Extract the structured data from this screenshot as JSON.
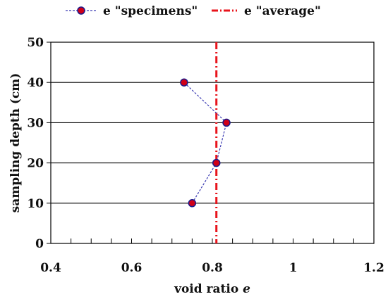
{
  "chart_data": {
    "type": "scatter",
    "xlabel": "void ratio",
    "xlabel_symbol": "e",
    "ylabel": "sampling depth (cm)",
    "xlim": [
      0.4,
      1.2
    ],
    "ylim": [
      0,
      50
    ],
    "x_ticks": [
      "0.4",
      "0.6",
      "0.8",
      "1",
      "1.2"
    ],
    "y_ticks": [
      "0",
      "10",
      "20",
      "30",
      "40",
      "50"
    ],
    "x_minor_step": 0.05,
    "grid": "horizontal",
    "legend_position": "top",
    "series": [
      {
        "name": "e \"specimens\"",
        "style": "dashed line with circle markers",
        "line_color": "#3b3bb3",
        "marker_fill": "#d00018",
        "marker_edge": "#1a1a8c",
        "points": [
          {
            "x": 0.75,
            "y": 10
          },
          {
            "x": 0.81,
            "y": 20
          },
          {
            "x": 0.835,
            "y": 30
          },
          {
            "x": 0.73,
            "y": 40
          }
        ]
      },
      {
        "name": "e \"average\"",
        "style": "dash-dot vertical line",
        "line_color": "#e8141c",
        "x": 0.81
      }
    ]
  }
}
